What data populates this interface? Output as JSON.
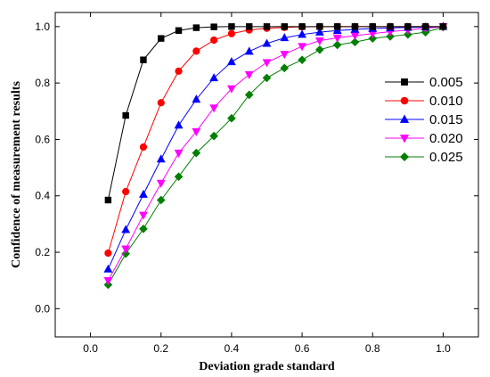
{
  "chart_data": {
    "type": "line",
    "xlabel": "Deviation grade standard",
    "ylabel": "Confidence of measurement results",
    "xlim": [
      -0.1,
      1.1
    ],
    "ylim": [
      -0.1,
      1.05
    ],
    "x_ticks": [
      0.0,
      0.2,
      0.4,
      0.6,
      0.8,
      1.0
    ],
    "y_ticks": [
      0.0,
      0.2,
      0.4,
      0.6,
      0.8,
      1.0
    ],
    "tick_format": "0.0",
    "grid": false,
    "legend_position": "right",
    "x": [
      0.05,
      0.1,
      0.15,
      0.2,
      0.25,
      0.3,
      0.35,
      0.4,
      0.45,
      0.5,
      0.55,
      0.6,
      0.65,
      0.7,
      0.75,
      0.8,
      0.85,
      0.9,
      0.95,
      1.0
    ],
    "series": [
      {
        "name": "0.005",
        "color": "#000000",
        "marker": "square",
        "values": [
          0.385,
          0.685,
          0.882,
          0.958,
          0.986,
          0.996,
          0.999,
          1.0,
          1.0,
          1.0,
          1.0,
          1.0,
          1.0,
          1.0,
          1.0,
          1.0,
          1.0,
          1.0,
          1.0,
          1.0
        ]
      },
      {
        "name": "0.010",
        "color": "#ff0000",
        "marker": "circle",
        "values": [
          0.197,
          0.415,
          0.573,
          0.73,
          0.842,
          0.913,
          0.952,
          0.975,
          0.988,
          0.994,
          0.997,
          0.999,
          1.0,
          1.0,
          1.0,
          1.0,
          1.0,
          1.0,
          1.0,
          1.0
        ]
      },
      {
        "name": "0.015",
        "color": "#0000ff",
        "marker": "triangle-up",
        "values": [
          0.14,
          0.28,
          0.405,
          0.53,
          0.65,
          0.742,
          0.818,
          0.875,
          0.912,
          0.94,
          0.96,
          0.972,
          0.98,
          0.986,
          0.99,
          0.993,
          0.995,
          0.997,
          0.998,
          1.0
        ]
      },
      {
        "name": "0.020",
        "color": "#ff00ff",
        "marker": "triangle-down",
        "values": [
          0.1,
          0.212,
          0.332,
          0.445,
          0.552,
          0.628,
          0.712,
          0.78,
          0.83,
          0.873,
          0.902,
          0.93,
          0.95,
          0.96,
          0.968,
          0.975,
          0.982,
          0.988,
          0.994,
          1.0
        ]
      },
      {
        "name": "0.025",
        "color": "#007f00",
        "marker": "diamond",
        "values": [
          0.085,
          0.195,
          0.283,
          0.385,
          0.468,
          0.552,
          0.612,
          0.675,
          0.758,
          0.818,
          0.853,
          0.882,
          0.918,
          0.935,
          0.945,
          0.958,
          0.965,
          0.972,
          0.98,
          0.998
        ]
      }
    ]
  }
}
